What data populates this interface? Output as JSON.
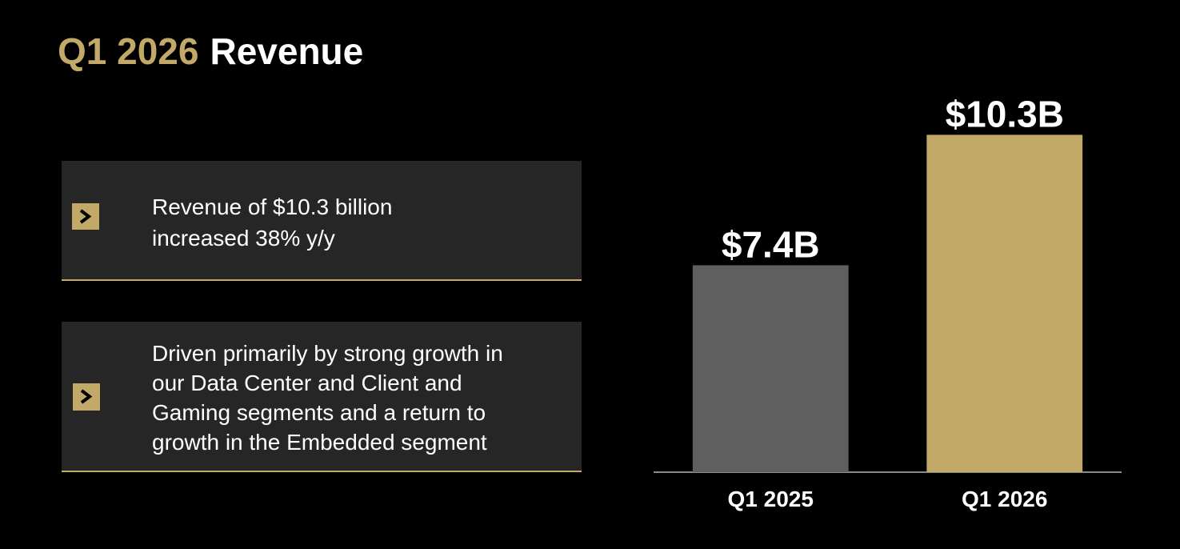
{
  "header": {
    "title_highlight": "Q1 2026",
    "title_rest": "Revenue"
  },
  "bullets": [
    {
      "lines": [
        "Revenue of $10.3 billion",
        "increased 38% y/y"
      ]
    },
    {
      "lines": [
        "Driven primarily by strong growth in",
        "our Data Center and Client and",
        "Gaming segments and a return to",
        "growth in the Embedded segment"
      ]
    }
  ],
  "chart_data": {
    "type": "bar",
    "categories": [
      "Q1 2025",
      "Q1 2026"
    ],
    "values": [
      7.4,
      10.3
    ],
    "value_labels": [
      "$7.4B",
      "$10.3B"
    ],
    "colors": [
      "#5f5f5f",
      "#c2a968"
    ],
    "ylim": [
      2.8,
      11.5
    ]
  }
}
